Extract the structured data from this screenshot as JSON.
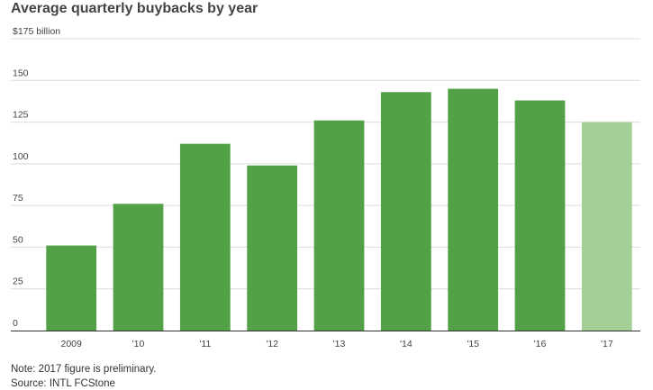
{
  "chart_data": {
    "type": "bar",
    "title": "Average quarterly buybacks by year",
    "ylabel": "",
    "xlabel": "",
    "top_tick_label": "$175 billion",
    "ylim": [
      0,
      175
    ],
    "yticks": [
      0,
      25,
      50,
      75,
      100,
      125,
      150,
      175
    ],
    "grid": true,
    "categories": [
      "2009",
      "'10",
      "'11",
      "'12",
      "'13",
      "'14",
      "'15",
      "'16",
      "'17"
    ],
    "values": [
      51,
      76,
      112,
      99,
      126,
      143,
      145,
      138,
      125
    ],
    "preliminary": [
      false,
      false,
      false,
      false,
      false,
      false,
      false,
      false,
      true
    ],
    "colors": {
      "bar": "#52a147",
      "bar_preliminary": "#a3d195",
      "grid": "#dcdcdc",
      "axis": "#333333"
    }
  },
  "footer": {
    "note": "Note: 2017 figure is preliminary.",
    "source": "Source: INTL FCStone"
  }
}
